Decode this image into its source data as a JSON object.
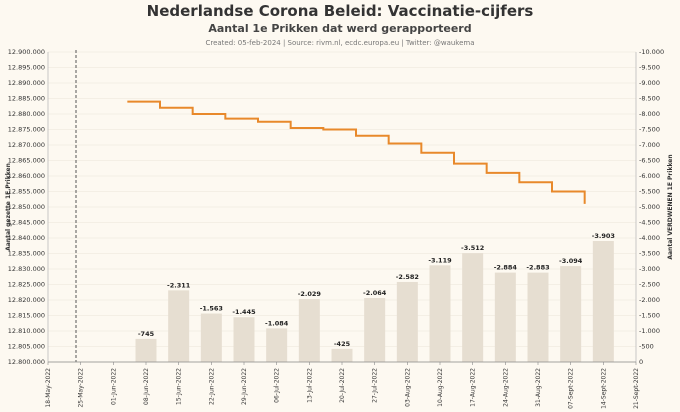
{
  "header": {
    "title": "Nederlandse Corona Beleid: Vaccinatie-cijfers",
    "subtitle": "Aantal 1e Prikken dat werd gerapporteerd",
    "credits": "Created: 05-feb-2024 | Source: rivm.nl, ecdc.europa.eu | Twitter: @waukema"
  },
  "colors": {
    "bar": "#e6ded1",
    "line": "#e8892b",
    "grid": "#ece6da",
    "text": "#333333",
    "marker": "#555555"
  },
  "chart_data": {
    "type": "bar",
    "x_ticks": [
      "18-May-2022",
      "25-May-2022",
      "01-Jun-2022",
      "08-Jun-2022",
      "15-Jun-2022",
      "22-Jun-2022",
      "29-Jun-2022",
      "06-Jul-2022",
      "13-Jul-2022",
      "20-Jul-2022",
      "27-Jul-2022",
      "03-Aug-2022",
      "10-Aug-2022",
      "17-Aug-2022",
      "24-Aug-2022",
      "31-Aug-2022",
      "07-Sept-2022",
      "14-Sept-2022",
      "21-Sept-2022"
    ],
    "categories": [
      "08-Jun-2022",
      "15-Jun-2022",
      "22-Jun-2022",
      "29-Jun-2022",
      "06-Jul-2022",
      "13-Jul-2022",
      "20-Jul-2022",
      "27-Jul-2022",
      "03-Aug-2022",
      "10-Aug-2022",
      "17-Aug-2022",
      "24-Aug-2022",
      "31-Aug-2022",
      "07-Sept-2022",
      "14-Sept-2022"
    ],
    "bar_values": [
      -745,
      -2311,
      -1563,
      -1445,
      -1084,
      -2029,
      -425,
      -2064,
      -2582,
      -3119,
      -3512,
      -2884,
      -2883,
      -3094,
      -3903
    ],
    "bar_labels": [
      "-745",
      "-2.311",
      "-1.563",
      "-1.445",
      "-1.084",
      "-2.029",
      "-425",
      "-2.064",
      "-2.582",
      "-3.119",
      "-3.512",
      "-2.884",
      "-2.883",
      "-3.094",
      "-3.903"
    ],
    "line_steps": [
      {
        "from": "04-Jun-2022",
        "to": "11-Jun-2022",
        "value": 12884000
      },
      {
        "from": "11-Jun-2022",
        "to": "18-Jun-2022",
        "value": 12882000
      },
      {
        "from": "18-Jun-2022",
        "to": "25-Jun-2022",
        "value": 12880000
      },
      {
        "from": "25-Jun-2022",
        "to": "02-Jul-2022",
        "value": 12878500
      },
      {
        "from": "02-Jul-2022",
        "to": "09-Jul-2022",
        "value": 12877500
      },
      {
        "from": "09-Jul-2022",
        "to": "16-Jul-2022",
        "value": 12875500
      },
      {
        "from": "16-Jul-2022",
        "to": "23-Jul-2022",
        "value": 12875000
      },
      {
        "from": "23-Jul-2022",
        "to": "30-Jul-2022",
        "value": 12873000
      },
      {
        "from": "30-Jul-2022",
        "to": "06-Aug-2022",
        "value": 12870500
      },
      {
        "from": "06-Aug-2022",
        "to": "13-Aug-2022",
        "value": 12867500
      },
      {
        "from": "13-Aug-2022",
        "to": "20-Aug-2022",
        "value": 12864000
      },
      {
        "from": "20-Aug-2022",
        "to": "27-Aug-2022",
        "value": 12861000
      },
      {
        "from": "27-Aug-2022",
        "to": "03-Sept-2022",
        "value": 12858000
      },
      {
        "from": "03-Sept-2022",
        "to": "10-Sept-2022",
        "value": 12855000
      },
      {
        "from": "10-Sept-2022",
        "to": "10-Sept-2022",
        "value": 12851000
      }
    ],
    "left_axis": {
      "label": "Aantal gezette 1E Prikken",
      "ylim": [
        12800000,
        12900000
      ],
      "ticks": [
        12800000,
        12805000,
        12810000,
        12815000,
        12820000,
        12825000,
        12830000,
        12835000,
        12840000,
        12845000,
        12850000,
        12855000,
        12860000,
        12865000,
        12870000,
        12875000,
        12880000,
        12885000,
        12890000,
        12895000,
        12900000
      ],
      "tick_labels": [
        "12.800.000",
        "12.805.000",
        "12.810.000",
        "12.815.000",
        "12.820.000",
        "12.825.000",
        "12.830.000",
        "12.835.000",
        "12.840.000",
        "12.845.000",
        "12.850.000",
        "12.855.000",
        "12.860.000",
        "12.865.000",
        "12.870.000",
        "12.875.000",
        "12.880.000",
        "12.885.000",
        "12.890.000",
        "12.895.000",
        "12.900.000"
      ]
    },
    "right_axis": {
      "label": "Aantal VERDWENEN 1E Prikken",
      "ylim": [
        0,
        -10000
      ],
      "ticks": [
        0,
        -500,
        -1000,
        -1500,
        -2000,
        -2500,
        -3000,
        -3500,
        -4000,
        -4500,
        -5000,
        -5500,
        -6000,
        -6500,
        -7000,
        -7500,
        -8000,
        -8500,
        -9000,
        -9500,
        -10000
      ],
      "tick_labels": [
        "0",
        "-500",
        "-1.000",
        "-1.500",
        "-2.000",
        "-2.500",
        "-3.000",
        "-3.500",
        "-4.000",
        "-4.500",
        "-5.000",
        "-5.500",
        "-6.000",
        "-6.500",
        "-7.000",
        "-7.500",
        "-8.000",
        "-8.500",
        "-9.000",
        "-9.500",
        "-10.000"
      ]
    },
    "reference_line_date": "24-May-2022",
    "grid": true
  }
}
